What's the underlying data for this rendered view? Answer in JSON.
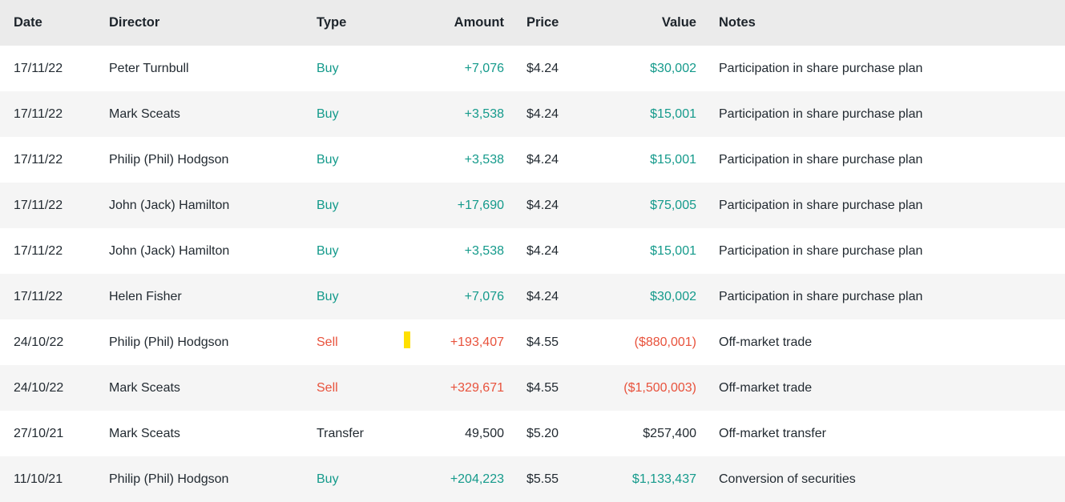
{
  "table": {
    "columns": [
      {
        "key": "date",
        "label": "Date"
      },
      {
        "key": "director",
        "label": "Director"
      },
      {
        "key": "type",
        "label": "Type"
      },
      {
        "key": "amount",
        "label": "Amount"
      },
      {
        "key": "price",
        "label": "Price"
      },
      {
        "key": "value",
        "label": "Value"
      },
      {
        "key": "notes",
        "label": "Notes"
      }
    ],
    "rows": [
      {
        "kind": "buy",
        "date": "17/11/22",
        "director": "Peter Turnbull",
        "type": "Buy",
        "amount": "+7,076",
        "price": "$4.24",
        "value": "$30,002",
        "notes": "Participation in share purchase plan"
      },
      {
        "kind": "buy",
        "date": "17/11/22",
        "director": "Mark Sceats",
        "type": "Buy",
        "amount": "+3,538",
        "price": "$4.24",
        "value": "$15,001",
        "notes": "Participation in share purchase plan"
      },
      {
        "kind": "buy",
        "date": "17/11/22",
        "director": "Philip (Phil) Hodgson",
        "type": "Buy",
        "amount": "+3,538",
        "price": "$4.24",
        "value": "$15,001",
        "notes": "Participation in share purchase plan"
      },
      {
        "kind": "buy",
        "date": "17/11/22",
        "director": "John (Jack) Hamilton",
        "type": "Buy",
        "amount": "+17,690",
        "price": "$4.24",
        "value": "$75,005",
        "notes": "Participation in share purchase plan"
      },
      {
        "kind": "buy",
        "date": "17/11/22",
        "director": "John (Jack) Hamilton",
        "type": "Buy",
        "amount": "+3,538",
        "price": "$4.24",
        "value": "$15,001",
        "notes": "Participation in share purchase plan"
      },
      {
        "kind": "buy",
        "date": "17/11/22",
        "director": "Helen Fisher",
        "type": "Buy",
        "amount": "+7,076",
        "price": "$4.24",
        "value": "$30,002",
        "notes": "Participation in share purchase plan"
      },
      {
        "kind": "sell",
        "date": "24/10/22",
        "director": "Philip (Phil) Hodgson",
        "type": "Sell",
        "amount": "+193,407",
        "price": "$4.55",
        "value": "($880,001)",
        "notes": "Off-market trade"
      },
      {
        "kind": "sell",
        "date": "24/10/22",
        "director": "Mark Sceats",
        "type": "Sell",
        "amount": "+329,671",
        "price": "$4.55",
        "value": "($1,500,003)",
        "notes": "Off-market trade"
      },
      {
        "kind": "transfer",
        "date": "27/10/21",
        "director": "Mark Sceats",
        "type": "Transfer",
        "amount": "49,500",
        "price": "$5.20",
        "value": "$257,400",
        "notes": "Off-market transfer"
      },
      {
        "kind": "buy",
        "date": "11/10/21",
        "director": "Philip (Phil) Hodgson",
        "type": "Buy",
        "amount": "+204,223",
        "price": "$5.55",
        "value": "$1,133,437",
        "notes": "Conversion of securities"
      }
    ]
  },
  "colors": {
    "buy": "#149a8b",
    "sell": "#e8523c",
    "text": "#222a31",
    "header_text": "#1d242b",
    "header_bg": "#ebebeb",
    "stripe_bg": "#f5f5f5",
    "cursor": "#ffe000"
  }
}
